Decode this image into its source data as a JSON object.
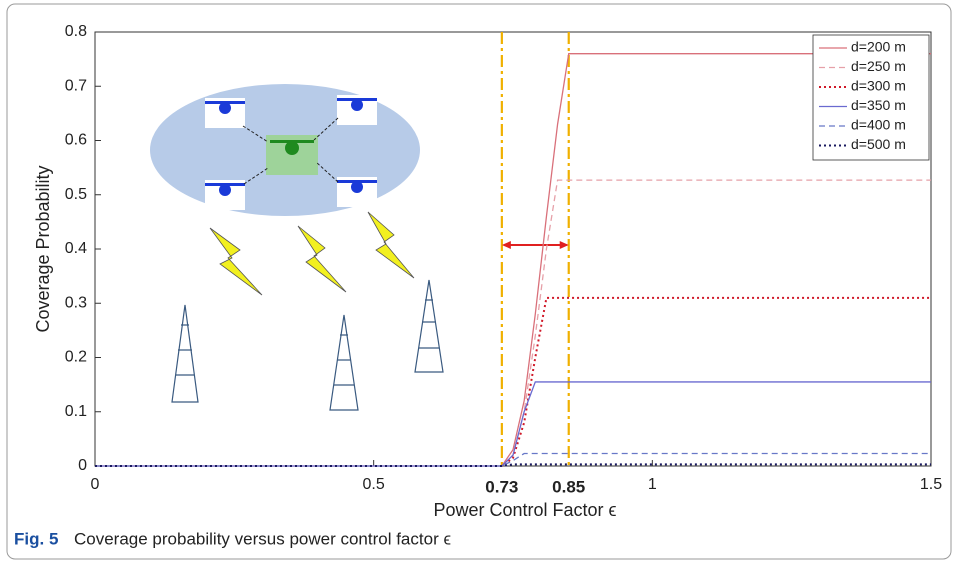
{
  "chart_data": {
    "type": "line",
    "xlabel": "Power Control Factor ϵ",
    "ylabel": "Coverage Probability",
    "caption_label": "Fig. 5",
    "caption": "Coverage probability versus power control factor ϵ",
    "x": [
      0,
      0.73,
      0.75,
      0.77,
      0.79,
      0.81,
      0.83,
      0.85,
      1.5
    ],
    "series": [
      {
        "name": "d=200 m",
        "color": "#d9707a",
        "dash": "solid",
        "values": [
          0,
          0,
          0.03,
          0.12,
          0.28,
          0.46,
          0.63,
          0.76,
          0.76
        ]
      },
      {
        "name": "d=250 m",
        "color": "#e6a0a8",
        "dash": "dashed",
        "values": [
          0,
          0,
          0.02,
          0.1,
          0.24,
          0.4,
          0.527,
          0.527,
          0.527
        ]
      },
      {
        "name": "d=300 m",
        "color": "#d01828",
        "dash": "dotted",
        "values": [
          0,
          0,
          0.015,
          0.08,
          0.2,
          0.31,
          0.31,
          0.31,
          0.31
        ]
      },
      {
        "name": "d=350 m",
        "color": "#6a6ad0",
        "dash": "solid",
        "values": [
          0,
          0,
          0.02,
          0.1,
          0.155,
          0.155,
          0.155,
          0.155,
          0.155
        ]
      },
      {
        "name": "d=400 m",
        "color": "#6878c8",
        "dash": "dashed",
        "values": [
          0,
          0,
          0.01,
          0.023,
          0.023,
          0.023,
          0.023,
          0.023,
          0.023
        ]
      },
      {
        "name": "d=500 m",
        "color": "#1a1a60",
        "dash": "dotted",
        "values": [
          0,
          0,
          0.003,
          0.003,
          0.003,
          0.003,
          0.003,
          0.003,
          0.003
        ]
      }
    ],
    "xlim": [
      0,
      1.5
    ],
    "xticks": [
      0,
      0.5,
      1,
      1.5
    ],
    "ylim": [
      0,
      0.8
    ],
    "yticks": [
      0,
      0.1,
      0.2,
      0.3,
      0.4,
      0.5,
      0.6,
      0.7,
      0.8
    ],
    "vlines": [
      0.73,
      0.85
    ],
    "vline_color": "#f0b000",
    "arrow_color": "#e02020",
    "grid": false,
    "legend": "upper right"
  }
}
